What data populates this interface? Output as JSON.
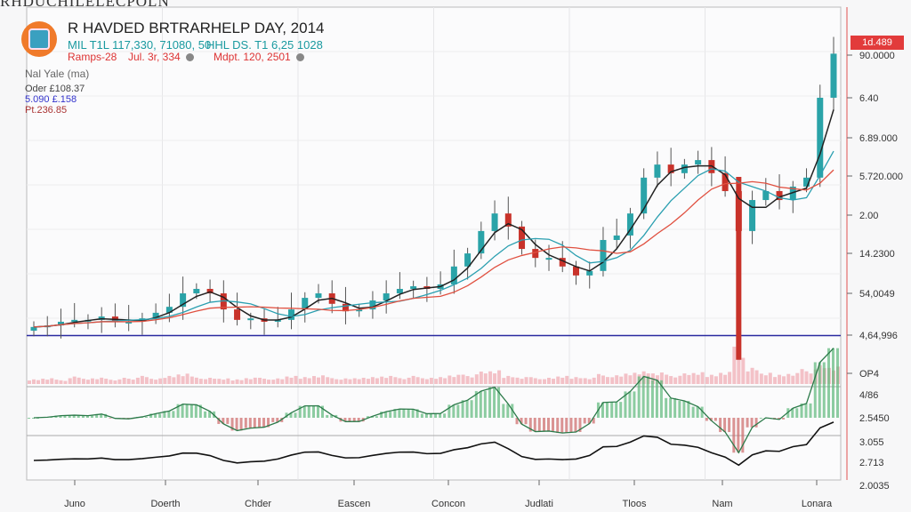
{
  "header": {
    "page_title": "RHDUCHILELECPOLN",
    "title": "R HAVDED BRTRARHELP DAY, 2014",
    "line1a": "MIL T1L 117,330, 71080, 50",
    "line1b": "HHL DS. T1 6,25 1028",
    "line2a": "Ramps-28",
    "line2b": "Jul. 3r, 334",
    "line2c": "Mdpt. 120, 2501",
    "legend_title": "Nal Yale (ma)",
    "legend_items": [
      "Oder £108.37",
      "5.090 £.158",
      "Pt.236.85"
    ]
  },
  "price_tag": "1d.489",
  "colors": {
    "up": "#2aa3a8",
    "down": "#c8322a",
    "ma_fast": "#222222",
    "ma_mid": "#2a9fb0",
    "ma_slow": "#e05040",
    "baseline": "#2a2aa0",
    "volume": "#f0a8b0",
    "osc": "#5cb87a",
    "axis": "#e05050"
  },
  "chart_data": {
    "type": "candlestick",
    "title": "R HAVDED BRTRARHELP DAY, 2014",
    "x_tick_labels": [
      "Juno",
      "Doerth",
      "Chder",
      "Eascen",
      "Concon",
      "Judlati",
      "Tloos",
      "Nam",
      "Lonara"
    ],
    "y_tick_labels": [
      "90.0000",
      "6.40",
      "6.89.000",
      "5.720.000",
      "2.00",
      "14.2300",
      "54,0049",
      "4,64,996",
      "OP4"
    ],
    "osc_tick_labels": [
      "4/86",
      "2.5450"
    ],
    "lower_tick_labels": [
      "3.055",
      "2.713",
      "2.0035"
    ],
    "ylim": [
      0,
      100
    ],
    "baseline": 12.5,
    "close": [
      14.8,
      15.2,
      16.2,
      16.7,
      16.7,
      17.6,
      16.2,
      16.2,
      17.1,
      18.6,
      20.2,
      23.8,
      25,
      23.8,
      19.5,
      16.7,
      17.1,
      16.2,
      16.7,
      19.5,
      22.6,
      23.8,
      21,
      19,
      19.5,
      21.9,
      23.8,
      25,
      25.7,
      25,
      26.2,
      31,
      34.5,
      40.5,
      45.2,
      41.7,
      35.7,
      33.3,
      33.3,
      31,
      28.6,
      29.8,
      38.1,
      39.3,
      45.2,
      54.8,
      58.3,
      56,
      58.3,
      59.5,
      56,
      51.2,
      40.5,
      48.8,
      51.2,
      48.8,
      52.4,
      54.8,
      76.2,
      88
    ],
    "volume": [
      8,
      10,
      7,
      12,
      9,
      11,
      8,
      10,
      13,
      9,
      14,
      18,
      12,
      10,
      9,
      8,
      11,
      10,
      9,
      13,
      12,
      15,
      11,
      9,
      10,
      12,
      14,
      11,
      13,
      10,
      12,
      16,
      15,
      20,
      22,
      14,
      12,
      11,
      10,
      13,
      12,
      11,
      16,
      14,
      18,
      22,
      20,
      15,
      17,
      19,
      16,
      21,
      60,
      26,
      18,
      16,
      19,
      24,
      30,
      28
    ]
  }
}
